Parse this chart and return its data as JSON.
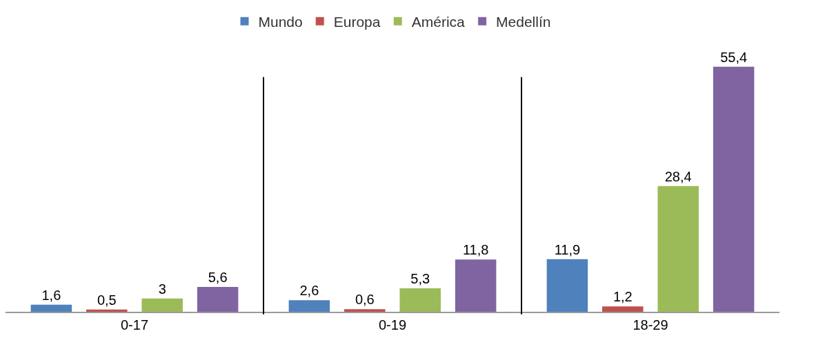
{
  "chart_data": {
    "type": "bar",
    "categories": [
      "0-17",
      "0-19",
      "18-29"
    ],
    "series": [
      {
        "name": "Mundo",
        "color": "#4f81bd",
        "values": [
          1.6,
          2.6,
          11.9
        ],
        "value_labels": [
          "1,6",
          "2,6",
          "11,9"
        ]
      },
      {
        "name": "Europa",
        "color": "#c0504d",
        "values": [
          0.5,
          0.6,
          1.2
        ],
        "value_labels": [
          "0,5",
          "0,6",
          "1,2"
        ]
      },
      {
        "name": "América",
        "color": "#9bbb59",
        "values": [
          3,
          5.3,
          28.4
        ],
        "value_labels": [
          "3",
          "5,3",
          "28,4"
        ]
      },
      {
        "name": "Medellín",
        "color": "#8064a2",
        "values": [
          5.6,
          11.8,
          55.4
        ],
        "value_labels": [
          "5,6",
          "11,8",
          "55,4"
        ]
      }
    ],
    "legend": "top",
    "grid": false
  }
}
